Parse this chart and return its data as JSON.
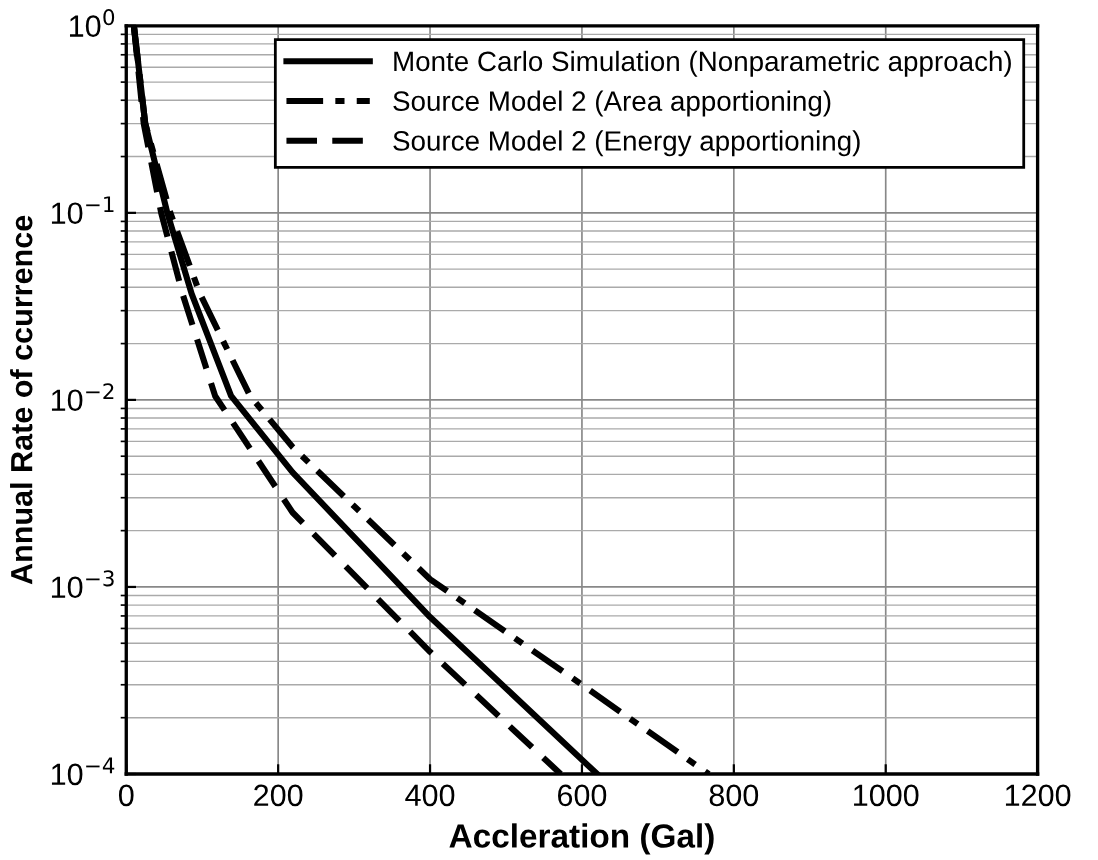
{
  "chart_data": {
    "type": "line",
    "xlabel": "Accleration (Gal)",
    "ylabel": "Annual Rate of ccurrence",
    "log": "y",
    "grid": true,
    "legend": "top right",
    "xlim": [
      0,
      1200
    ],
    "xticks": [
      0,
      200,
      400,
      600,
      800,
      1000,
      1200
    ],
    "ylim": [
      0.0001,
      1
    ],
    "yticks": [
      {
        "value": 0.0001,
        "label": "10$^{−4}$"
      },
      {
        "value": 0.001,
        "label": "10$^{−3}$"
      },
      {
        "value": 0.01,
        "label": "10$^{−2}$"
      },
      {
        "value": 0.1,
        "label": "10$^{−1}$"
      },
      {
        "value": 1,
        "label": "10$^{0}$"
      }
    ],
    "series": [
      {
        "name": "Monte Carlo Simulation (Nonparametric approach)",
        "color": "#000000",
        "line_style": "solid",
        "x": [
          10,
          25,
          54,
          86,
          138,
          219,
          400,
          620
        ],
        "values": [
          1,
          0.3,
          0.1,
          0.037,
          0.0105,
          0.0041,
          0.00069,
          0.0001
        ]
      },
      {
        "name": "Source Model 2 (Area apportioning)",
        "color": "#000000",
        "line_style": "dashdot",
        "x": [
          10,
          25,
          58,
          97,
          163,
          219,
          400,
          600,
          767
        ],
        "values": [
          1,
          0.3,
          0.1,
          0.037,
          0.0105,
          0.0056,
          0.0011,
          0.0003,
          0.0001
        ]
      },
      {
        "name": "Source Model 2 (Energy apportioning)",
        "color": "#000000",
        "line_style": "dashed",
        "x": [
          10,
          23,
          46,
          74,
          117,
          219,
          400,
          572
        ],
        "values": [
          1,
          0.3,
          0.1,
          0.037,
          0.0105,
          0.0025,
          0.00045,
          0.0001
        ]
      }
    ]
  }
}
